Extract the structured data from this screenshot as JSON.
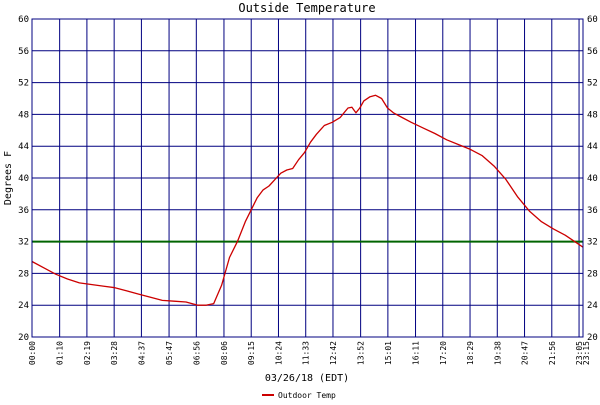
{
  "chart_data": {
    "type": "line",
    "title": "Outside Temperature",
    "xlabel": "03/26/18 (EDT)",
    "ylabel": "Degrees F",
    "ylim": [
      20,
      60
    ],
    "yticks": [
      "20",
      "24",
      "28",
      "32",
      "36",
      "40",
      "44",
      "48",
      "52",
      "56",
      "60"
    ],
    "xticks": [
      "00:00",
      "01:10",
      "02:19",
      "03:28",
      "04:37",
      "05:47",
      "06:56",
      "08:06",
      "09:15",
      "10:24",
      "11:33",
      "12:42",
      "13:52",
      "15:01",
      "16:11",
      "17:20",
      "18:29",
      "19:38",
      "20:47",
      "21:56",
      "23:05",
      "23:15"
    ],
    "grid": true,
    "legend_position": "bottom",
    "reference_line": {
      "y": 32,
      "color": "#006400"
    },
    "colors": {
      "grid": "#000080",
      "series": "#cc0000",
      "reference": "#006400"
    },
    "series": [
      {
        "name": "Outdoor Temp",
        "color": "#cc0000",
        "x": [
          "00:00",
          "00:30",
          "01:00",
          "01:30",
          "02:00",
          "02:30",
          "03:00",
          "03:30",
          "04:00",
          "04:30",
          "05:00",
          "05:30",
          "06:00",
          "06:30",
          "07:00",
          "07:20",
          "07:40",
          "08:00",
          "08:20",
          "08:40",
          "09:00",
          "09:15",
          "09:30",
          "09:45",
          "10:00",
          "10:15",
          "10:30",
          "10:45",
          "11:00",
          "11:15",
          "11:30",
          "11:45",
          "12:00",
          "12:20",
          "12:40",
          "13:00",
          "13:10",
          "13:20",
          "13:30",
          "13:40",
          "13:50",
          "14:00",
          "14:15",
          "14:30",
          "14:45",
          "15:00",
          "15:15",
          "15:30",
          "16:00",
          "16:30",
          "17:00",
          "17:30",
          "18:00",
          "18:30",
          "19:00",
          "19:30",
          "20:00",
          "20:30",
          "21:00",
          "21:30",
          "22:00",
          "22:30",
          "23:00",
          "23:15"
        ],
        "values": [
          29.5,
          28.7,
          27.9,
          27.3,
          26.8,
          26.6,
          26.4,
          26.2,
          25.8,
          25.4,
          25.0,
          24.6,
          24.5,
          24.4,
          24.0,
          24.0,
          24.2,
          26.5,
          30.0,
          32.0,
          34.5,
          36.0,
          37.5,
          38.5,
          39.0,
          39.8,
          40.6,
          41.0,
          41.2,
          42.3,
          43.2,
          44.5,
          45.5,
          46.6,
          47.0,
          47.6,
          48.2,
          48.8,
          48.9,
          48.2,
          48.8,
          49.7,
          50.2,
          50.4,
          50.0,
          48.8,
          48.2,
          47.8,
          47.0,
          46.3,
          45.6,
          44.8,
          44.2,
          43.6,
          42.8,
          41.5,
          39.8,
          37.6,
          35.8,
          34.5,
          33.6,
          32.8,
          31.8,
          31.3
        ]
      }
    ]
  }
}
